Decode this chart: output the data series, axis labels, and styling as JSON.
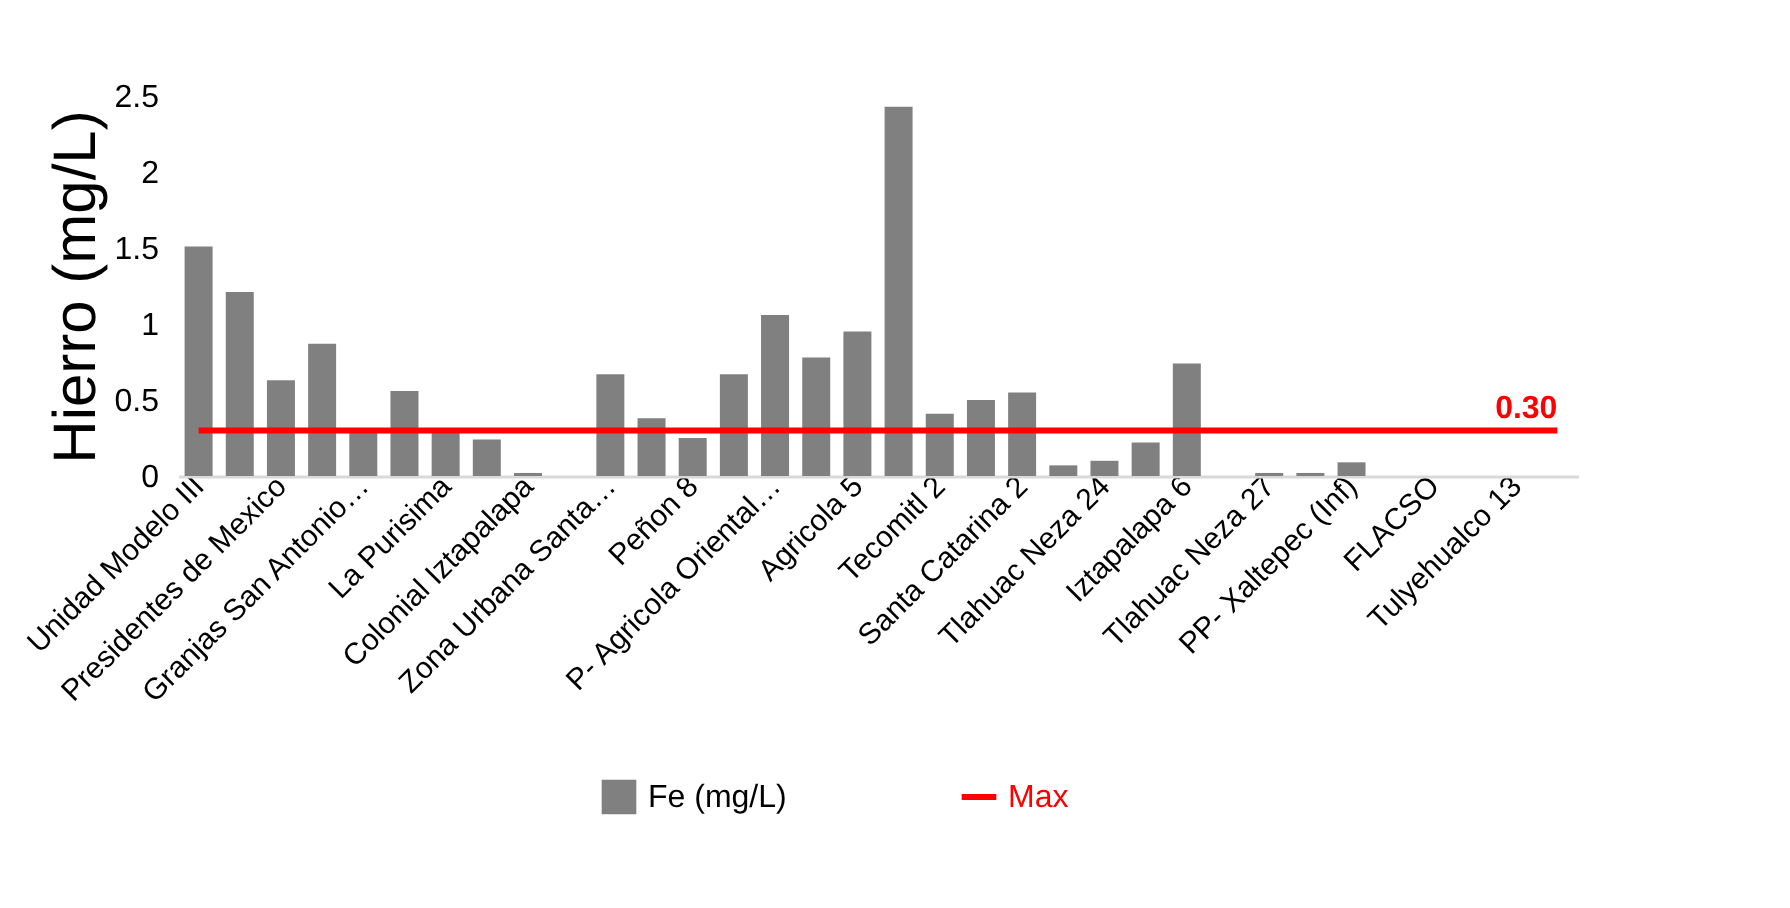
{
  "chart_data": {
    "type": "bar",
    "ylabel": "Hierro (mg/L)",
    "categories": [
      "Unidad Modelo III",
      null,
      "Presidentes de Mexico",
      null,
      "Granjas San Antonio…",
      null,
      "La Purisima",
      null,
      "Colonial Iztapalapa",
      null,
      "Zona Urbana Santa…",
      null,
      "Peñon 8",
      null,
      "P- Agricola Oriental…",
      null,
      "Agricola 5",
      null,
      "Tecomitl 2",
      null,
      "Santa Catarina 2",
      null,
      "Tlahuac Neza 24",
      null,
      "Iztapalapa 6",
      null,
      "Tlahuac Neza 27",
      null,
      "PP- Xaltepec (Inf)",
      null,
      "FLACSO",
      null,
      "Tulyehualco 13",
      null
    ],
    "series": [
      {
        "name": "Fe (mg/L)",
        "type": "bar",
        "color": "#808080",
        "values": [
          1.51,
          1.21,
          0.63,
          0.87,
          0.29,
          0.56,
          0.3,
          0.24,
          0.02,
          0,
          0.67,
          0.38,
          0.25,
          0.67,
          1.06,
          0.78,
          0.95,
          2.43,
          0.41,
          0.5,
          0.55,
          0.07,
          0.1,
          0.22,
          0.74,
          0,
          0.02,
          0.02,
          0.09,
          0,
          0,
          0,
          0,
          0
        ]
      },
      {
        "name": "Max",
        "type": "line",
        "color": "#ff0000",
        "values": [
          0.3,
          0.3,
          0.3,
          0.3,
          0.3,
          0.3,
          0.3,
          0.3,
          0.3,
          0.3,
          0.3,
          0.3,
          0.3,
          0.3,
          0.3,
          0.3,
          0.3,
          0.3,
          0.3,
          0.3,
          0.3,
          0.3,
          0.3,
          0.3,
          0.3,
          0.3,
          0.3,
          0.3,
          0.3,
          0.3,
          0.3,
          0.3,
          0.3,
          0.3
        ],
        "value_labels": [
          null,
          null,
          null,
          null,
          null,
          null,
          null,
          null,
          null,
          null,
          null,
          null,
          null,
          null,
          null,
          null,
          null,
          null,
          null,
          null,
          null,
          null,
          null,
          null,
          null,
          null,
          null,
          null,
          null,
          null,
          null,
          null,
          null,
          "0.30"
        ]
      }
    ],
    "ylim": [
      0,
      2.5
    ],
    "yticks": [
      0,
      0.5,
      1,
      1.5,
      2,
      2.5
    ],
    "grid": false,
    "legend": "bottom"
  }
}
